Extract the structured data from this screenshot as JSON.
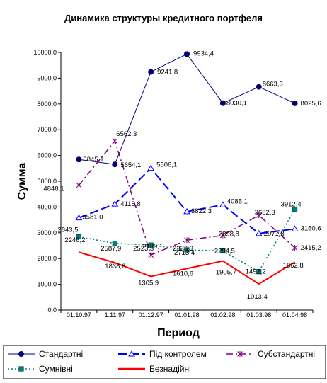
{
  "chart_data": {
    "type": "line",
    "title": "Динамика структуры кредитного портфеля",
    "xlabel": "Период",
    "ylabel": "Сумма",
    "categories": [
      "01.10.97",
      "1.11.97",
      "01.12.97",
      "01.01.98",
      "01.02.98",
      "01.03.98",
      "01.04.98"
    ],
    "y_ticks": [
      "0,0",
      "1000,0",
      "2000,0",
      "3000,0",
      "4000,0",
      "5000,0",
      "6000,0",
      "7000,0",
      "8000,0",
      "9000,0",
      "10000,0"
    ],
    "ylim": [
      0,
      10000
    ],
    "grid": false,
    "legend_position": "bottom",
    "series": [
      {
        "name": "Стандартні",
        "color": "#000080",
        "marker": "circle",
        "dash": "solid",
        "values": [
          5845.1,
          5654.1,
          9241.8,
          9934.4,
          8030.1,
          8663.3,
          8025.6
        ],
        "labels": [
          "5845,1",
          "5654,1",
          "9241,8",
          "9934,4",
          "8030,1",
          "8663,3",
          "8025,6"
        ]
      },
      {
        "name": "Під контролем",
        "color": "#0000ff",
        "marker": "triangle",
        "dash": "longdash",
        "values": [
          3581.0,
          4115.8,
          5506.1,
          3822.3,
          4085.1,
          2971.8,
          3150.6
        ],
        "labels": [
          "3581,0",
          "4115,8",
          "5506,1",
          "3822,3",
          "4085,1",
          "2971,8",
          "3150,6"
        ]
      },
      {
        "name": "Субстандартні",
        "color": "#800080",
        "marker": "star",
        "dash": "dashdot",
        "values": [
          4848.1,
          6562.3,
          2139.1,
          2713.4,
          2898.8,
          3682.3,
          2415.2
        ],
        "labels": [
          "4848,1",
          "6562,3",
          "2139,1",
          "2713,4",
          "2898,8",
          "3682,3",
          "2415,2"
        ]
      },
      {
        "name": "Сумнівні",
        "color": "#008080",
        "marker": "square",
        "dash": "dotted",
        "values": [
          2843.5,
          2587.9,
          2523.3,
          2336.3,
          2294.5,
          1492.2,
          3912.4
        ],
        "labels": [
          "2843,5",
          "2587,9",
          "2523,3",
          "2336,3",
          "2294,5",
          "1492,2",
          "3912,4"
        ]
      },
      {
        "name": "Безнадійні",
        "color": "#ff0000",
        "marker": "none",
        "dash": "solid",
        "values": [
          2246.2,
          1838.6,
          1305.9,
          1610.6,
          1905.7,
          1013.4,
          1862.8
        ],
        "labels": [
          "2246,2",
          "1838,6",
          "1305,9",
          "1610,6",
          "1905,7",
          "1013,4",
          "1862,8"
        ]
      }
    ]
  }
}
